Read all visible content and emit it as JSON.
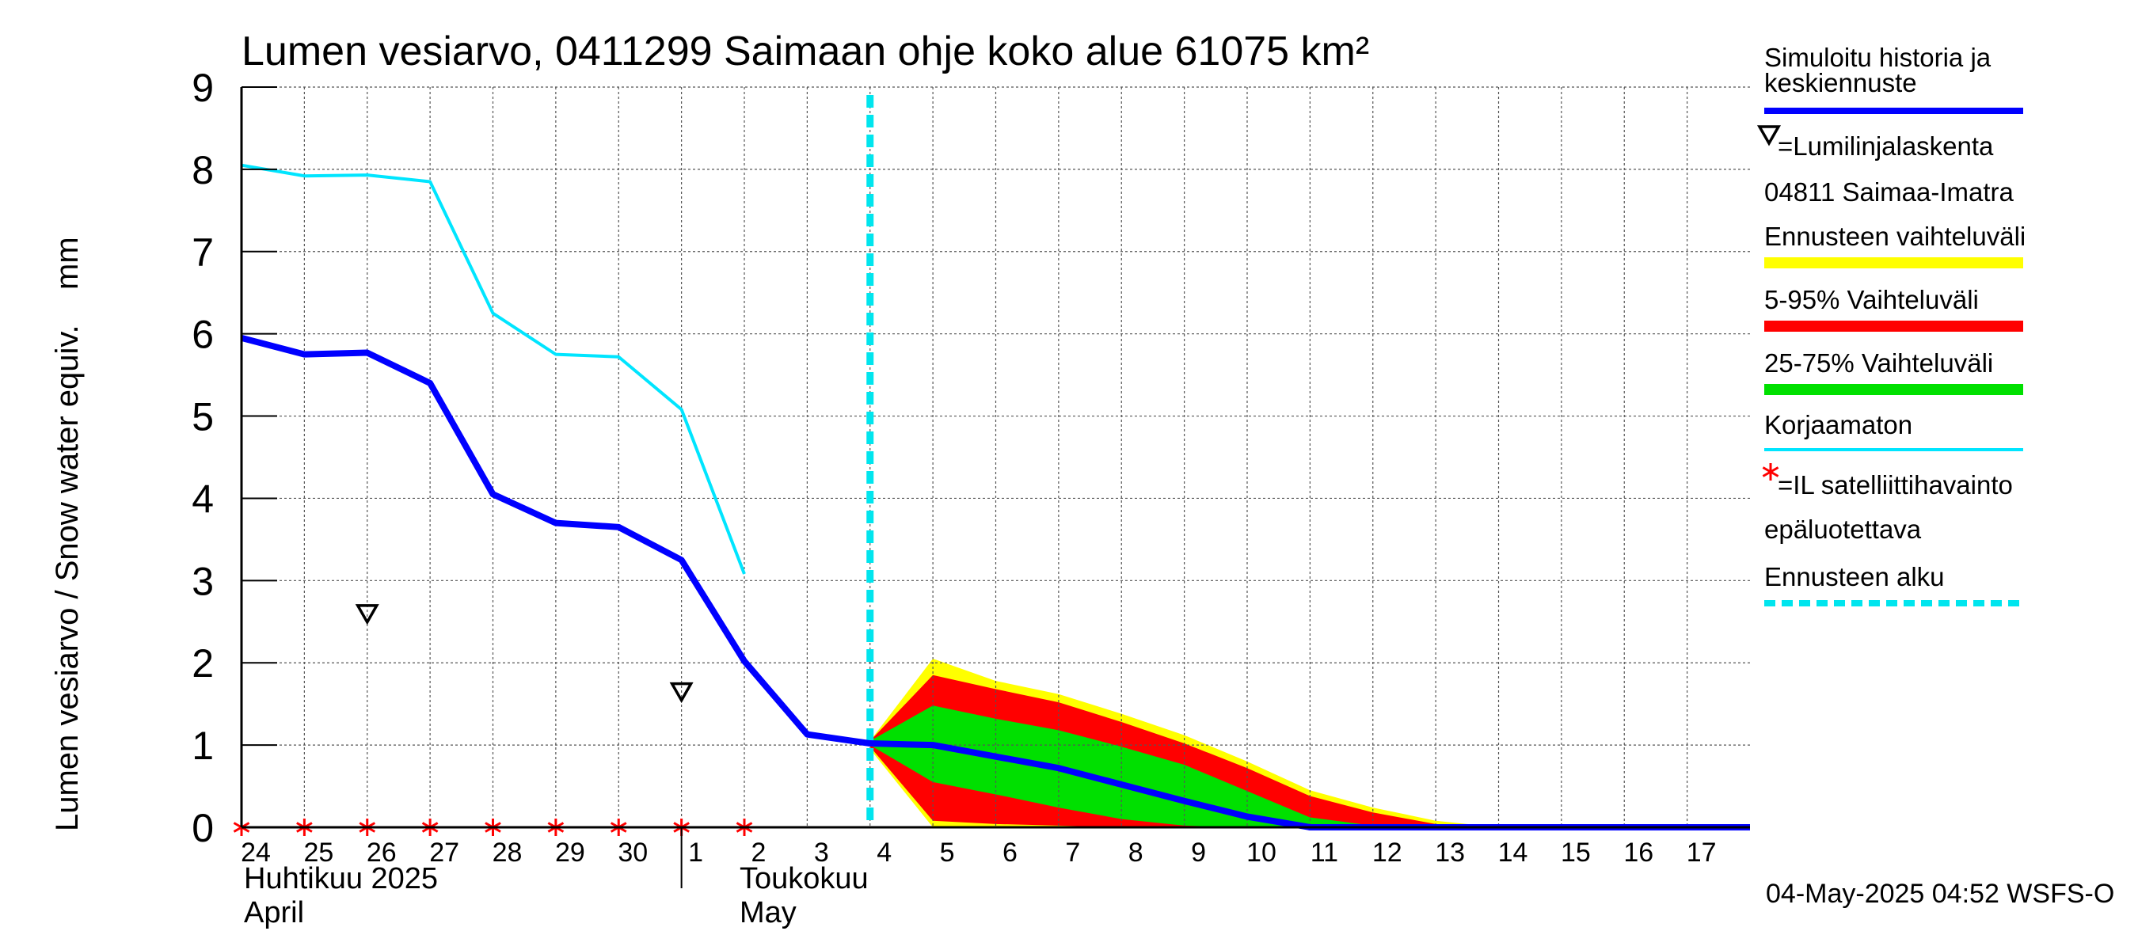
{
  "chart_data": {
    "type": "area",
    "title": "Lumen vesiarvo, 0411299 Saimaan ohje koko alue 61075 km²",
    "ylabel": "Lumen vesiarvo / Snow water equiv.    mm",
    "ylim": [
      0,
      9
    ],
    "yticks": [
      "0",
      "1",
      "2",
      "3",
      "4",
      "5",
      "6",
      "7",
      "8",
      "9"
    ],
    "xlim": [
      0,
      24
    ],
    "x_tick_labels": [
      {
        "x": 0,
        "label": "24"
      },
      {
        "x": 1,
        "label": "25"
      },
      {
        "x": 2,
        "label": "26"
      },
      {
        "x": 3,
        "label": "27"
      },
      {
        "x": 4,
        "label": "28"
      },
      {
        "x": 5,
        "label": "29"
      },
      {
        "x": 6,
        "label": "30"
      },
      {
        "x": 7,
        "label": "1"
      },
      {
        "x": 8,
        "label": "2"
      },
      {
        "x": 9,
        "label": "3"
      },
      {
        "x": 10,
        "label": "4"
      },
      {
        "x": 11,
        "label": "5"
      },
      {
        "x": 12,
        "label": "6"
      },
      {
        "x": 13,
        "label": "7"
      },
      {
        "x": 14,
        "label": "8"
      },
      {
        "x": 15,
        "label": "9"
      },
      {
        "x": 16,
        "label": "10"
      },
      {
        "x": 17,
        "label": "11"
      },
      {
        "x": 18,
        "label": "12"
      },
      {
        "x": 19,
        "label": "13"
      },
      {
        "x": 20,
        "label": "14"
      },
      {
        "x": 21,
        "label": "15"
      },
      {
        "x": 22,
        "label": "16"
      },
      {
        "x": 23,
        "label": "17"
      }
    ],
    "month_labels": [
      {
        "x": 0,
        "line1": "Huhtikuu  2025",
        "line2": "April"
      },
      {
        "x": 8,
        "line1": "Toukokuu",
        "line2": "May"
      }
    ],
    "month_boundary_x": 7,
    "forecast_start_x": 10,
    "x_axis_note": "x values are days; 0 = 24 April 2025, 7 = 1 May 2025",
    "grid": true,
    "series": {
      "simulated": {
        "name": "Simuloitu historia ja keskiennuste",
        "color": "#0000ff",
        "points": [
          [
            0,
            5.95
          ],
          [
            1,
            5.75
          ],
          [
            2,
            5.77
          ],
          [
            3,
            5.4
          ],
          [
            4,
            4.05
          ],
          [
            5,
            3.7
          ],
          [
            6,
            3.65
          ],
          [
            7,
            3.25
          ],
          [
            8,
            2.02
          ],
          [
            9,
            1.13
          ],
          [
            10,
            1.02
          ],
          [
            11,
            1.0
          ],
          [
            12,
            0.86
          ],
          [
            13,
            0.72
          ],
          [
            14,
            0.52
          ],
          [
            15,
            0.32
          ],
          [
            16,
            0.13
          ],
          [
            17,
            0.0
          ],
          [
            18,
            0.0
          ],
          [
            19,
            0.0
          ],
          [
            20,
            0.0
          ],
          [
            21,
            0.0
          ],
          [
            22,
            0.0
          ],
          [
            23,
            0.0
          ],
          [
            24,
            0.0
          ]
        ]
      },
      "uncorrected": {
        "name": "Korjaamaton",
        "color": "#00e5ff",
        "points": [
          [
            0,
            8.05
          ],
          [
            1,
            7.92
          ],
          [
            2,
            7.93
          ],
          [
            3,
            7.85
          ],
          [
            4,
            6.25
          ],
          [
            5,
            5.75
          ],
          [
            6,
            5.72
          ],
          [
            7,
            5.08
          ],
          [
            8,
            3.08
          ]
        ]
      },
      "forecast_range": {
        "name": "Ennusteen vaihteluväli",
        "color": "#ffff00",
        "upper": [
          [
            10,
            1.05
          ],
          [
            11,
            2.05
          ],
          [
            12,
            1.78
          ],
          [
            13,
            1.62
          ],
          [
            14,
            1.38
          ],
          [
            15,
            1.12
          ],
          [
            16,
            0.8
          ],
          [
            17,
            0.45
          ],
          [
            18,
            0.24
          ],
          [
            19,
            0.08
          ],
          [
            20,
            0.0
          ]
        ],
        "lower": [
          [
            10,
            0.95
          ],
          [
            11,
            0.0
          ],
          [
            12,
            0.0
          ],
          [
            13,
            0.0
          ],
          [
            14,
            0.0
          ],
          [
            15,
            0.0
          ],
          [
            16,
            0.0
          ],
          [
            17,
            0.0
          ],
          [
            18,
            0.0
          ],
          [
            19,
            0.0
          ],
          [
            20,
            0.0
          ]
        ]
      },
      "p5_95": {
        "name": "5-95% Vaihteluväli",
        "color": "#ff0000",
        "upper": [
          [
            10,
            1.05
          ],
          [
            11,
            1.85
          ],
          [
            12,
            1.68
          ],
          [
            13,
            1.52
          ],
          [
            14,
            1.28
          ],
          [
            15,
            1.02
          ],
          [
            16,
            0.72
          ],
          [
            17,
            0.38
          ],
          [
            18,
            0.18
          ],
          [
            19,
            0.04
          ],
          [
            20,
            0.0
          ]
        ],
        "lower": [
          [
            10,
            0.98
          ],
          [
            11,
            0.08
          ],
          [
            12,
            0.04
          ],
          [
            13,
            0.02
          ],
          [
            14,
            0.0
          ],
          [
            15,
            0.0
          ],
          [
            16,
            0.0
          ],
          [
            17,
            0.0
          ],
          [
            18,
            0.0
          ],
          [
            19,
            0.0
          ],
          [
            20,
            0.0
          ]
        ]
      },
      "p25_75": {
        "name": "25-75% Vaihteluväli",
        "color": "#00e000",
        "upper": [
          [
            10,
            1.05
          ],
          [
            11,
            1.48
          ],
          [
            12,
            1.32
          ],
          [
            13,
            1.18
          ],
          [
            14,
            0.98
          ],
          [
            15,
            0.76
          ],
          [
            16,
            0.44
          ],
          [
            17,
            0.12
          ],
          [
            18,
            0.02
          ],
          [
            19,
            0.0
          ]
        ],
        "lower": [
          [
            10,
            1.0
          ],
          [
            11,
            0.55
          ],
          [
            12,
            0.4
          ],
          [
            13,
            0.24
          ],
          [
            14,
            0.1
          ],
          [
            15,
            0.02
          ],
          [
            16,
            0.0
          ],
          [
            17,
            0.0
          ],
          [
            18,
            0.0
          ],
          [
            19,
            0.0
          ]
        ]
      }
    },
    "snowline_markers": {
      "name": "=Lumilinjalaskenta",
      "station": "04811 Saimaa-Imatra",
      "points": [
        [
          2,
          2.6
        ],
        [
          7,
          1.65
        ]
      ]
    },
    "satellite_markers": {
      "name": "=IL satelliittihavainto",
      "note": "epäluotettava",
      "color": "#ff0000",
      "x": [
        0,
        1,
        2,
        3,
        4,
        5,
        6,
        7,
        8
      ]
    },
    "forecast_start_label": "Ennusteen alku",
    "legend_position": "right"
  },
  "footer": {
    "timestamp": "04-May-2025 04:52 WSFS-O"
  }
}
